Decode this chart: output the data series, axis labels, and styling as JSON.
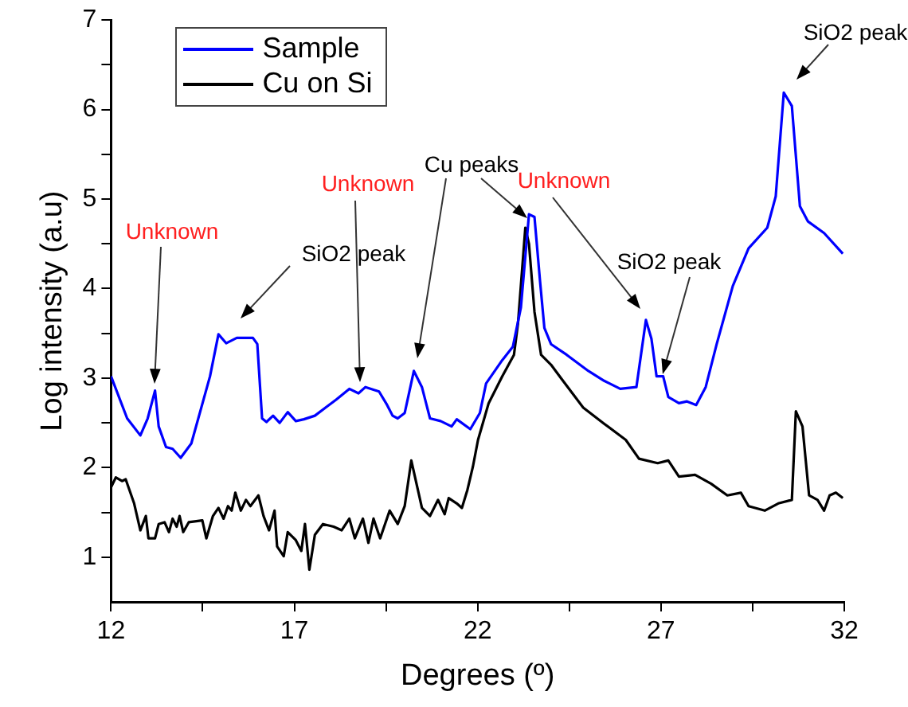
{
  "chart_data": {
    "type": "line",
    "xlabel": "Degrees (º)",
    "ylabel": "Log intensity (a.u)",
    "xlim": [
      12,
      32
    ],
    "xticks": [
      12,
      {
        "value": 14.5,
        "label": null
      },
      17,
      {
        "value": 19.5,
        "label": null
      },
      22,
      {
        "value": 24.5,
        "label": null
      },
      27,
      {
        "value": 29.5,
        "label": null
      },
      32
    ],
    "ylim": [
      0.5,
      7
    ],
    "yticks": [
      1,
      {
        "value": 1.5,
        "label": null
      },
      2,
      {
        "value": 2.5,
        "label": null
      },
      3,
      {
        "value": 3.5,
        "label": null
      },
      4,
      {
        "value": 4.5,
        "label": null
      },
      5,
      {
        "value": 5.5,
        "label": null
      },
      6,
      {
        "value": 6.5,
        "label": null
      },
      7
    ],
    "grid": false,
    "legend": "top left",
    "marker": "none",
    "line_style": "solid",
    "series": [
      {
        "name": "Sample",
        "color": "#0000ff",
        "x": [
          12.0,
          12.44,
          12.8,
          13.0,
          13.2,
          13.3,
          13.5,
          13.68,
          13.9,
          14.19,
          14.7,
          14.93,
          15.14,
          15.43,
          15.87,
          15.99,
          16.12,
          16.24,
          16.42,
          16.6,
          16.82,
          17.04,
          17.26,
          17.56,
          17.85,
          18.14,
          18.5,
          18.75,
          18.94,
          19.31,
          19.53,
          19.68,
          19.82,
          20.01,
          20.26,
          20.48,
          20.7,
          20.99,
          21.29,
          21.43,
          21.8,
          22.06,
          22.23,
          22.67,
          22.96,
          23.18,
          23.4,
          23.55,
          23.7,
          23.82,
          24.0,
          24.43,
          25.02,
          25.45,
          25.89,
          26.33,
          26.59,
          26.74,
          26.88,
          27.06,
          27.2,
          27.49,
          27.71,
          27.96,
          28.22,
          28.52,
          28.96,
          29.39,
          29.9,
          30.13,
          30.35,
          30.57,
          30.79,
          31.01,
          31.45,
          31.96
        ],
        "values": [
          3.02,
          2.55,
          2.36,
          2.55,
          2.86,
          2.46,
          2.23,
          2.21,
          2.11,
          2.27,
          3.02,
          3.49,
          3.39,
          3.45,
          3.45,
          3.38,
          2.55,
          2.51,
          2.58,
          2.5,
          2.62,
          2.52,
          2.54,
          2.58,
          2.67,
          2.76,
          2.88,
          2.83,
          2.9,
          2.85,
          2.7,
          2.58,
          2.55,
          2.61,
          3.08,
          2.9,
          2.55,
          2.52,
          2.46,
          2.54,
          2.43,
          2.61,
          2.94,
          3.2,
          3.35,
          3.79,
          4.83,
          4.8,
          4.09,
          3.56,
          3.38,
          3.26,
          3.08,
          2.97,
          2.88,
          2.9,
          3.65,
          3.44,
          3.02,
          3.02,
          2.79,
          2.72,
          2.74,
          2.7,
          2.9,
          3.38,
          4.03,
          4.45,
          4.68,
          5.03,
          6.19,
          6.04,
          4.92,
          4.75,
          4.62,
          4.39
        ]
      },
      {
        "name": "Cu on Si",
        "color": "#000000",
        "x": [
          12.0,
          12.13,
          12.3,
          12.4,
          12.63,
          12.8,
          12.95,
          13.02,
          13.2,
          13.3,
          13.46,
          13.58,
          13.68,
          13.79,
          13.87,
          13.97,
          14.12,
          14.49,
          14.6,
          14.78,
          14.93,
          15.07,
          15.19,
          15.29,
          15.39,
          15.54,
          15.68,
          15.8,
          16.02,
          16.16,
          16.31,
          16.46,
          16.53,
          16.71,
          16.82,
          17.04,
          17.19,
          17.29,
          17.41,
          17.56,
          17.78,
          18.07,
          18.29,
          18.5,
          18.65,
          18.87,
          19.02,
          19.16,
          19.34,
          19.6,
          19.82,
          20.01,
          20.19,
          20.48,
          20.7,
          20.92,
          21.1,
          21.21,
          21.43,
          21.57,
          21.72,
          21.87,
          22.01,
          22.3,
          22.67,
          22.99,
          23.1,
          23.3,
          23.4,
          23.55,
          23.73,
          24.0,
          24.29,
          24.88,
          25.45,
          26.04,
          26.4,
          26.91,
          27.2,
          27.49,
          27.93,
          28.37,
          28.81,
          29.18,
          29.39,
          29.83,
          30.2,
          30.57,
          30.68,
          30.86,
          31.04,
          31.27,
          31.45,
          31.6,
          31.77,
          31.96
        ],
        "values": [
          1.78,
          1.89,
          1.85,
          1.87,
          1.6,
          1.3,
          1.46,
          1.21,
          1.21,
          1.37,
          1.39,
          1.28,
          1.43,
          1.34,
          1.46,
          1.28,
          1.39,
          1.41,
          1.21,
          1.46,
          1.55,
          1.43,
          1.57,
          1.52,
          1.72,
          1.52,
          1.64,
          1.57,
          1.69,
          1.46,
          1.3,
          1.52,
          1.12,
          1.01,
          1.28,
          1.19,
          1.07,
          1.37,
          0.86,
          1.25,
          1.37,
          1.34,
          1.3,
          1.43,
          1.21,
          1.43,
          1.16,
          1.43,
          1.21,
          1.52,
          1.37,
          1.57,
          2.08,
          1.55,
          1.46,
          1.64,
          1.48,
          1.66,
          1.6,
          1.55,
          1.75,
          2.01,
          2.31,
          2.72,
          3.02,
          3.26,
          3.61,
          4.68,
          4.5,
          3.74,
          3.26,
          3.15,
          2.99,
          2.67,
          2.49,
          2.31,
          2.1,
          2.05,
          2.08,
          1.9,
          1.92,
          1.82,
          1.69,
          1.72,
          1.57,
          1.52,
          1.6,
          1.64,
          2.63,
          2.46,
          1.69,
          1.64,
          1.52,
          1.69,
          1.72,
          1.66
        ]
      }
    ],
    "annotations": [
      "Unknown",
      "SiO2 peak",
      "Unknown",
      "Cu peaks",
      "Unknown",
      "SiO2 peak",
      "SiO2 peak"
    ]
  }
}
